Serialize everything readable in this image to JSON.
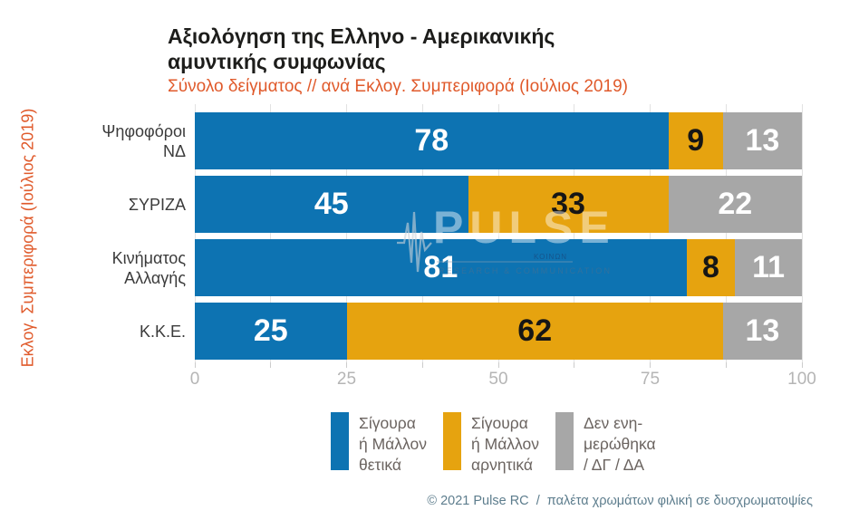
{
  "header": {
    "title": "Αξιολόγηση της Ελληνο - Αμερικανικής\nαμυντικής συμφωνίας",
    "subtitle": "Σύνολο δείγματος // ανά Εκλογ. Συμπεριφορά (Ιούλιος 2019)"
  },
  "y_axis_label": "Εκλογ. Συμπεριφορά (Ιούλιος 2019)",
  "watermark": {
    "name": "PULSE",
    "tagline": "RESEARCH & COMMUNICATION",
    "partial_text": "ΚΟΙΝΩΝ",
    "icon": "pulse-waveform-icon"
  },
  "footer": {
    "text": "© 2021 Pulse RC  /  παλέτα χρωμάτων φιλική σε δυσχρωματοψίες"
  },
  "colors": {
    "positive_blue": "#0d73b2",
    "negative_orange": "#e6a30f",
    "neutral_gray": "#a7a7a7",
    "accent_orange": "#e05a2b",
    "footer_blue_gray": "#5d7d8d",
    "gridline": "#e2e2e2"
  },
  "chart_data": {
    "type": "bar",
    "orientation": "horizontal",
    "stacked": true,
    "title": "Αξιολόγηση της Ελληνο - Αμερικανικής αμυντικής συμφωνίας",
    "subtitle": "Σύνολο δείγματος // ανά Εκλογ. Συμπεριφορά (Ιούλιος 2019)",
    "ylabel": "Εκλογ. Συμπεριφορά (Ιούλιος 2019)",
    "categories": [
      "Ψηφοφόροι ΝΔ",
      "ΣΥΡΙΖΑ",
      "Κινήματος Αλλαγής",
      "Κ.Κ.Ε."
    ],
    "categories_display": [
      [
        "Ψηφοφόροι",
        "ΝΔ"
      ],
      [
        "ΣΥΡΙΖΑ"
      ],
      [
        "Κινήματος",
        "Αλλαγής"
      ],
      [
        "Κ.Κ.Ε."
      ]
    ],
    "series": [
      {
        "name": "Σίγουρα ή Μάλλον θετικά",
        "color": "#0d73b2",
        "value_label_color": "#ffffff",
        "values": [
          78,
          45,
          81,
          25
        ]
      },
      {
        "name": "Σίγουρα ή Μάλλον αρνητικά",
        "color": "#e6a30f",
        "value_label_color": "#161616",
        "values": [
          9,
          33,
          8,
          62
        ]
      },
      {
        "name": "Δεν ενημερώθηκα / ΔΓ / ΔΑ",
        "color": "#a7a7a7",
        "value_label_color": "#ffffff",
        "values": [
          13,
          22,
          11,
          13
        ]
      }
    ],
    "xlim": [
      0,
      100
    ],
    "x_ticks": [
      0,
      25,
      50,
      75,
      100
    ],
    "minor_tick_interval": 12.5,
    "grid": true,
    "legend_position": "bottom"
  },
  "legend": {
    "items": [
      {
        "label_lines": [
          "Σίγουρα",
          "ή Μάλλον",
          "θετικά"
        ],
        "color": "#0d73b2"
      },
      {
        "label_lines": [
          "Σίγουρα",
          "ή Μάλλον",
          "αρνητικά"
        ],
        "color": "#e6a30f"
      },
      {
        "label_lines": [
          "Δεν ενη-",
          "μερώθηκα",
          "/ ΔΓ / ΔΑ"
        ],
        "color": "#a7a7a7"
      }
    ]
  }
}
